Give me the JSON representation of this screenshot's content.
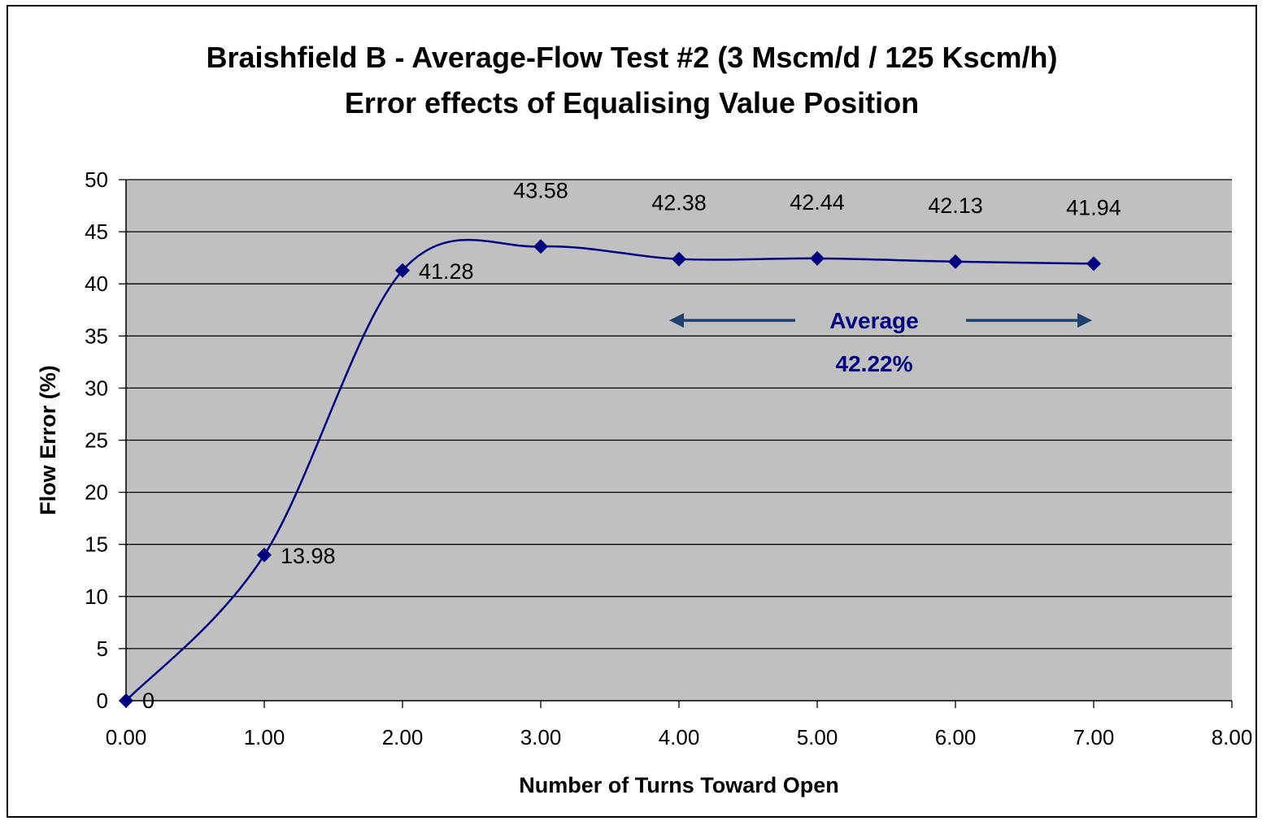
{
  "colors": {
    "plot_bg": "#c0c0c0",
    "series": "#000080",
    "annotation_arrow": "#1f3f6e",
    "gridline": "#000000"
  },
  "chart_data": {
    "type": "line",
    "title": "Braishfield B - Average-Flow Test #2 (3 Mscm/d / 125 Kscm/h)",
    "subtitle": "Error effects of Equalising Value Position",
    "xlabel": "Number of Turns Toward Open",
    "ylabel": "Flow Error (%)",
    "xlim": [
      0,
      8
    ],
    "ylim": [
      0,
      50
    ],
    "x_ticks": [
      "0.00",
      "1.00",
      "2.00",
      "3.00",
      "4.00",
      "5.00",
      "6.00",
      "7.00",
      "8.00"
    ],
    "y_ticks": [
      "0",
      "5",
      "10",
      "15",
      "20",
      "25",
      "30",
      "35",
      "40",
      "45",
      "50"
    ],
    "grid": true,
    "smoothed": true,
    "series": [
      {
        "x": [
          0,
          1,
          2,
          3,
          4,
          5,
          6,
          7
        ],
        "y": [
          0,
          13.98,
          41.28,
          43.58,
          42.38,
          42.44,
          42.13,
          41.94
        ],
        "data_labels": [
          "0",
          "13.98",
          "41.28",
          "43.58",
          "42.38",
          "42.44",
          "42.13",
          "41.94"
        ]
      }
    ],
    "annotation": {
      "label": "Average",
      "value": "42.22%",
      "x_range": [
        4,
        7
      ]
    }
  }
}
